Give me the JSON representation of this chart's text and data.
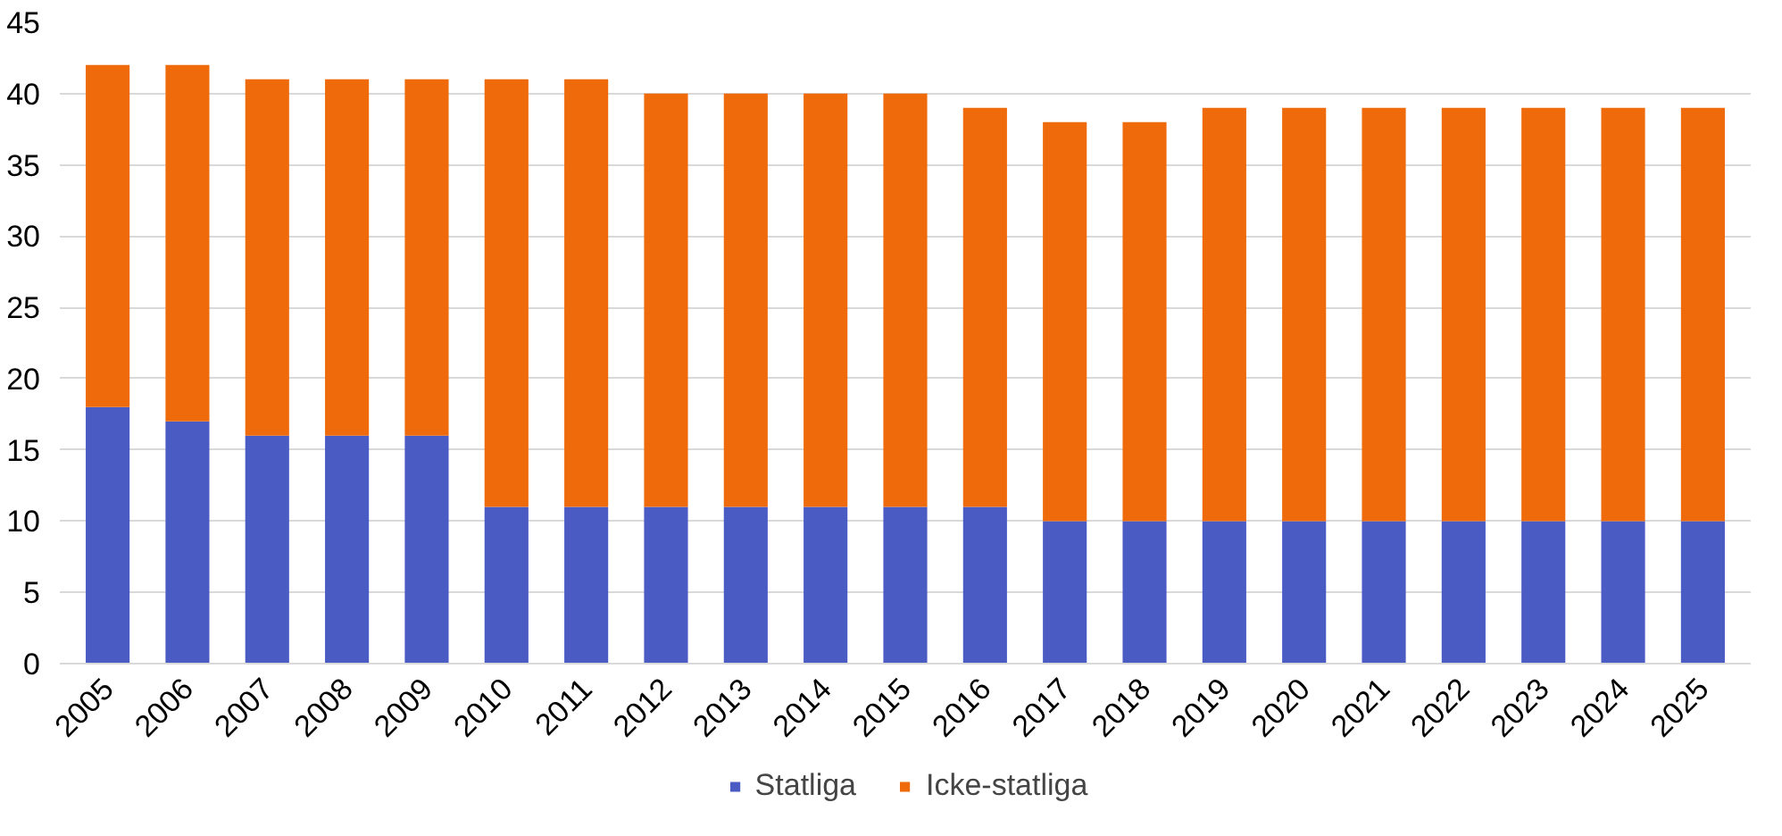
{
  "chart_data": {
    "type": "bar",
    "stacked": true,
    "categories": [
      "2005",
      "2006",
      "2007",
      "2008",
      "2009",
      "2010",
      "2011",
      "2012",
      "2013",
      "2014",
      "2015",
      "2016",
      "2017",
      "2018",
      "2019",
      "2020",
      "2021",
      "2022",
      "2023",
      "2024",
      "2025"
    ],
    "series": [
      {
        "name": "Statliga",
        "color": "#4b5bc4",
        "values": [
          18,
          17,
          16,
          16,
          16,
          11,
          11,
          11,
          11,
          11,
          11,
          11,
          10,
          10,
          10,
          10,
          10,
          10,
          10,
          10,
          10
        ]
      },
      {
        "name": "Icke-statliga",
        "color": "#ee6a0a",
        "values": [
          24,
          25,
          25,
          25,
          25,
          30,
          30,
          29,
          29,
          29,
          29,
          28,
          28,
          28,
          29,
          29,
          29,
          29,
          29,
          29,
          29
        ]
      }
    ],
    "ylim": [
      0,
      45
    ],
    "yticks": [
      0,
      5,
      10,
      15,
      20,
      25,
      30,
      35,
      40,
      45
    ],
    "grid": "y",
    "legend": "bottom"
  }
}
